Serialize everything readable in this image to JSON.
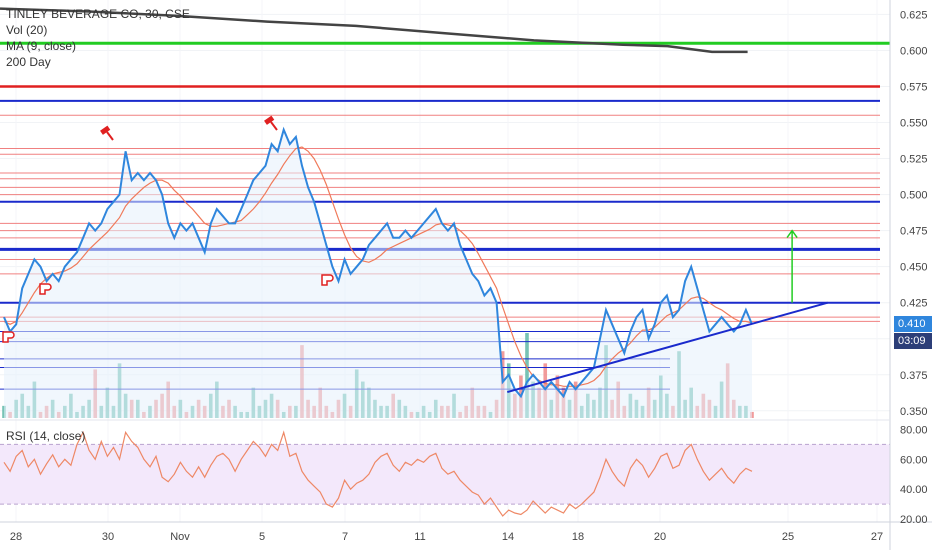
{
  "legend": {
    "title": "TINLEY BEVERAGE CO, 30, CSE",
    "vol": "Vol (20)",
    "ma": "MA (9, close)",
    "sma200": "200 Day"
  },
  "rsi_legend": "RSI (14, close)",
  "badges": {
    "price": "0.410",
    "countdown": "03:09"
  },
  "colors": {
    "price_line": "#2f86dd",
    "ma_line": "#f07a5a",
    "sma200": "#444444",
    "support": "#22cc22",
    "hline_thin": "#f08080",
    "hline_red": "#e02020",
    "hline_blue": "#1a2acc",
    "rsi_line": "#ee8866",
    "rsi_band": "#f3e8fb",
    "vol_up": "#5fb8a8",
    "vol_down": "#ef8a8a",
    "price_badge": "#2f86dd",
    "countdown_badge": "#2c3e78"
  },
  "chart_data": {
    "type": "line",
    "symbol": "TINLEY BEVERAGE CO",
    "interval": "30",
    "exchange": "CSE",
    "x_ticks": [
      "28",
      "30",
      "Nov",
      "5",
      "7",
      "11",
      "14",
      "18",
      "20",
      "25",
      "27"
    ],
    "price_axis": {
      "ticks": [
        "0.625",
        "0.600",
        "0.575",
        "0.550",
        "0.525",
        "0.500",
        "0.475",
        "0.450",
        "0.425",
        "0.400",
        "0.375",
        "0.350"
      ],
      "range": [
        0.345,
        0.635
      ]
    },
    "rsi_axis": {
      "ticks": [
        "80.00",
        "60.00",
        "40.00",
        "20.00"
      ],
      "range": [
        18,
        85
      ],
      "band": [
        30,
        70
      ]
    },
    "last_price": 0.41,
    "price_series": [
      0.415,
      0.405,
      0.41,
      0.435,
      0.445,
      0.455,
      0.45,
      0.44,
      0.445,
      0.44,
      0.45,
      0.455,
      0.46,
      0.47,
      0.48,
      0.475,
      0.48,
      0.49,
      0.495,
      0.5,
      0.53,
      0.51,
      0.515,
      0.51,
      0.515,
      0.51,
      0.5,
      0.48,
      0.47,
      0.48,
      0.475,
      0.48,
      0.47,
      0.46,
      0.48,
      0.49,
      0.485,
      0.48,
      0.48,
      0.49,
      0.5,
      0.51,
      0.515,
      0.52,
      0.535,
      0.53,
      0.545,
      0.535,
      0.54,
      0.52,
      0.505,
      0.495,
      0.48,
      0.465,
      0.45,
      0.44,
      0.455,
      0.445,
      0.45,
      0.455,
      0.465,
      0.47,
      0.475,
      0.48,
      0.47,
      0.47,
      0.475,
      0.47,
      0.475,
      0.48,
      0.485,
      0.49,
      0.48,
      0.475,
      0.48,
      0.465,
      0.455,
      0.445,
      0.44,
      0.43,
      0.435,
      0.425,
      0.37,
      0.375,
      0.365,
      0.36,
      0.37,
      0.375,
      0.37,
      0.365,
      0.37,
      0.365,
      0.36,
      0.37,
      0.365,
      0.37,
      0.375,
      0.38,
      0.4,
      0.42,
      0.41,
      0.4,
      0.39,
      0.405,
      0.415,
      0.42,
      0.4,
      0.41,
      0.425,
      0.43,
      0.415,
      0.42,
      0.44,
      0.45,
      0.435,
      0.42,
      0.405,
      0.41,
      0.415,
      0.41,
      0.405,
      0.41,
      0.42,
      0.41
    ],
    "ma_series": [
      0.412,
      0.41,
      0.412,
      0.418,
      0.425,
      0.432,
      0.438,
      0.442,
      0.445,
      0.446,
      0.447,
      0.449,
      0.452,
      0.457,
      0.462,
      0.466,
      0.47,
      0.474,
      0.479,
      0.484,
      0.492,
      0.497,
      0.501,
      0.505,
      0.508,
      0.51,
      0.51,
      0.508,
      0.503,
      0.499,
      0.494,
      0.49,
      0.485,
      0.48,
      0.478,
      0.478,
      0.479,
      0.48,
      0.481,
      0.482,
      0.486,
      0.49,
      0.495,
      0.501,
      0.508,
      0.514,
      0.521,
      0.527,
      0.532,
      0.533,
      0.53,
      0.525,
      0.517,
      0.507,
      0.495,
      0.483,
      0.472,
      0.463,
      0.457,
      0.454,
      0.453,
      0.455,
      0.458,
      0.462,
      0.464,
      0.466,
      0.468,
      0.47,
      0.472,
      0.474,
      0.476,
      0.479,
      0.48,
      0.479,
      0.478,
      0.475,
      0.471,
      0.466,
      0.459,
      0.451,
      0.443,
      0.435,
      0.422,
      0.41,
      0.398,
      0.388,
      0.38,
      0.374,
      0.371,
      0.369,
      0.368,
      0.368,
      0.367,
      0.367,
      0.367,
      0.368,
      0.369,
      0.371,
      0.375,
      0.381,
      0.386,
      0.39,
      0.393,
      0.397,
      0.402,
      0.406,
      0.406,
      0.408,
      0.412,
      0.416,
      0.418,
      0.42,
      0.424,
      0.428,
      0.429,
      0.428,
      0.425,
      0.422,
      0.42,
      0.417,
      0.414,
      0.412,
      0.412,
      0.411
    ],
    "sma200_series": [
      [
        0.0,
        0.629
      ],
      [
        0.1,
        0.627
      ],
      [
        0.2,
        0.624
      ],
      [
        0.3,
        0.62
      ],
      [
        0.4,
        0.617
      ],
      [
        0.5,
        0.612
      ],
      [
        0.6,
        0.607
      ],
      [
        0.7,
        0.604
      ],
      [
        0.75,
        0.603
      ],
      [
        0.8,
        0.599
      ],
      [
        0.84,
        0.599
      ]
    ],
    "horizontal_levels": {
      "thin_red": [
        0.555,
        0.532,
        0.528,
        0.515,
        0.511,
        0.505,
        0.5,
        0.495,
        0.48,
        0.475,
        0.47,
        0.455,
        0.445,
        0.415,
        0.412
      ],
      "red_thick": [
        0.575
      ],
      "blue": [
        0.565,
        0.495,
        0.462,
        0.425,
        0.405,
        0.398,
        0.386,
        0.38,
        0.365
      ],
      "green": [
        0.605
      ]
    },
    "trendline": {
      "from": [
        0.57,
        0.363
      ],
      "to": [
        0.93,
        0.425
      ]
    },
    "target_arrow": {
      "x": 0.89,
      "from": 0.425,
      "to": 0.475
    },
    "volume": [
      2,
      1,
      3,
      4,
      2,
      6,
      1,
      2,
      3,
      1,
      2,
      4,
      1,
      2,
      3,
      8,
      2,
      5,
      2,
      9,
      4,
      3,
      3,
      1,
      2,
      3,
      4,
      6,
      2,
      3,
      1,
      2,
      3,
      2,
      4,
      6,
      2,
      3,
      2,
      1,
      1,
      5,
      2,
      3,
      4,
      3,
      1,
      2,
      2,
      12,
      3,
      2,
      5,
      2,
      1,
      3,
      4,
      2,
      8,
      6,
      5,
      3,
      2,
      2,
      4,
      3,
      2,
      1,
      1,
      2,
      1,
      3,
      2,
      2,
      4,
      1,
      2,
      5,
      2,
      2,
      1,
      3,
      11,
      9,
      4,
      7,
      14,
      6,
      5,
      9,
      3,
      7,
      5,
      3,
      6,
      2,
      4,
      3,
      5,
      12,
      3,
      6,
      2,
      4,
      3,
      2,
      5,
      3,
      7,
      4,
      2,
      11,
      3,
      5,
      2,
      4,
      3,
      2,
      6,
      9,
      3,
      2,
      2,
      1
    ],
    "rsi_series": [
      58,
      52,
      62,
      66,
      55,
      60,
      50,
      57,
      63,
      55,
      60,
      56,
      70,
      78,
      66,
      60,
      72,
      62,
      68,
      60,
      78,
      72,
      68,
      60,
      55,
      62,
      48,
      45,
      50,
      58,
      52,
      48,
      55,
      48,
      56,
      62,
      64,
      60,
      52,
      60,
      66,
      72,
      68,
      62,
      70,
      66,
      78,
      62,
      64,
      52,
      46,
      42,
      38,
      30,
      28,
      34,
      46,
      40,
      44,
      46,
      50,
      58,
      62,
      64,
      56,
      52,
      58,
      56,
      60,
      58,
      62,
      64,
      54,
      50,
      52,
      46,
      42,
      38,
      36,
      30,
      34,
      28,
      22,
      26,
      24,
      23,
      26,
      32,
      28,
      24,
      28,
      26,
      24,
      30,
      27,
      30,
      34,
      38,
      48,
      60,
      52,
      46,
      42,
      54,
      60,
      56,
      48,
      54,
      62,
      64,
      54,
      56,
      66,
      70,
      60,
      52,
      46,
      50,
      54,
      48,
      44,
      50,
      54,
      52
    ]
  }
}
